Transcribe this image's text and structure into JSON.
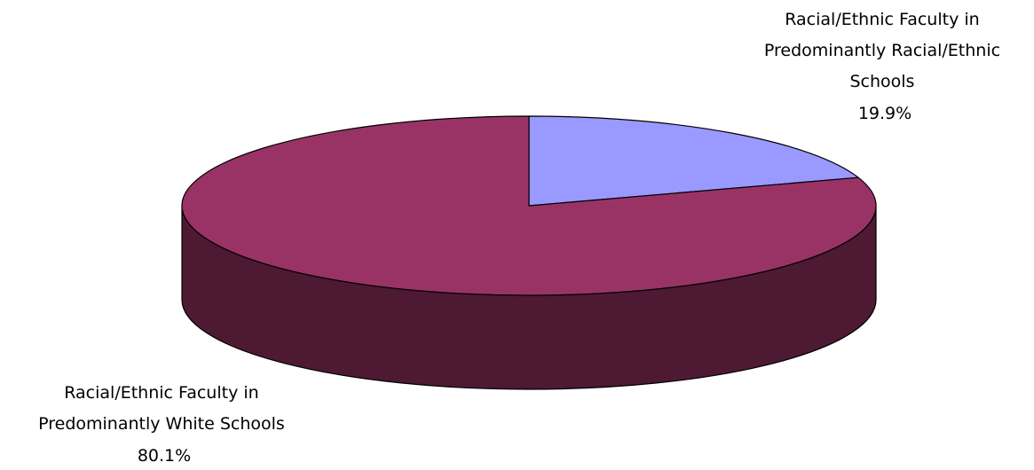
{
  "chart_data": {
    "type": "pie",
    "style": "3d",
    "slices": [
      {
        "label_lines": [
          "Racial/Ethnic Faculty in",
          "Predominantly Racial/Ethnic",
          "Schools"
        ],
        "value": 19.9,
        "value_label": "19.9%",
        "color": "#9999ff",
        "side_color": "#4d4d80"
      },
      {
        "label_lines": [
          "Racial/Ethnic Faculty in",
          "Predominantly White Schools"
        ],
        "value": 80.1,
        "value_label": "80.1%",
        "color": "#993366",
        "side_color": "#4d1933"
      }
    ],
    "start_angle_deg": -90,
    "direction": "clockwise",
    "legend": "none"
  }
}
